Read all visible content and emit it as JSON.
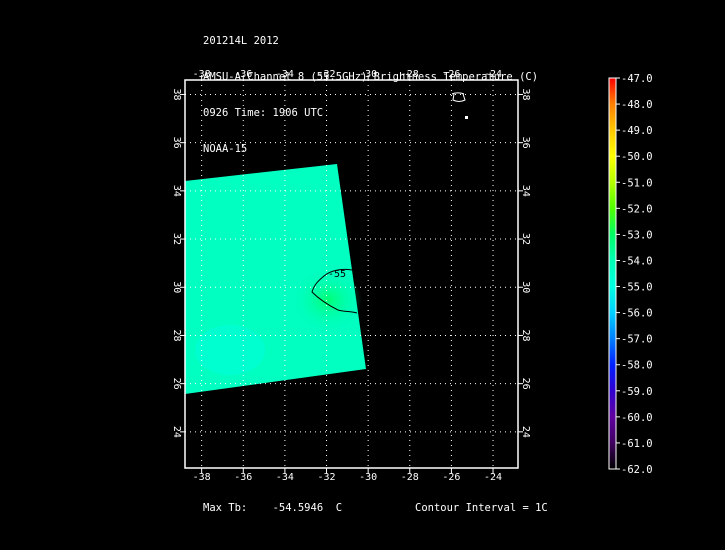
{
  "header": {
    "line1": "201214L 2012",
    "line2": "AMSU-A Channel 8 (55.5GHz) Brightness Temperature (C)",
    "line3": "0926 Time: 1906 UTC",
    "line4": "NOAA-15"
  },
  "axes": {
    "lon_ticks": [
      "-38",
      "-36",
      "-34",
      "-32",
      "-30",
      "-28",
      "-26",
      "-24"
    ],
    "lat_ticks": [
      "24",
      "26",
      "28",
      "30",
      "32",
      "34",
      "36",
      "38"
    ],
    "lon_range": [
      -38.8,
      -22.8
    ],
    "lat_range": [
      22.5,
      38.6
    ]
  },
  "contour": {
    "label": "-55"
  },
  "colorbar": {
    "labels": [
      "-47.0",
      "-48.0",
      "-49.0",
      "-50.0",
      "-51.0",
      "-52.0",
      "-53.0",
      "-54.0",
      "-55.0",
      "-56.0",
      "-57.0",
      "-58.0",
      "-59.0",
      "-60.0",
      "-61.0",
      "-62.0"
    ],
    "colors": [
      "#ff0000",
      "#ff8000",
      "#ffc800",
      "#ffff00",
      "#b4ff00",
      "#50ff00",
      "#00ff64",
      "#00ffb4",
      "#00ffe0",
      "#00d0ff",
      "#0080ff",
      "#0020ff",
      "#3000d0",
      "#6000a0",
      "#400060",
      "#000000"
    ]
  },
  "footer": {
    "max_tb_label": "Max Tb:",
    "max_tb_value": "-54.5946",
    "max_tb_unit": "C",
    "contour_interval": "Contour Interval = 1C"
  }
}
